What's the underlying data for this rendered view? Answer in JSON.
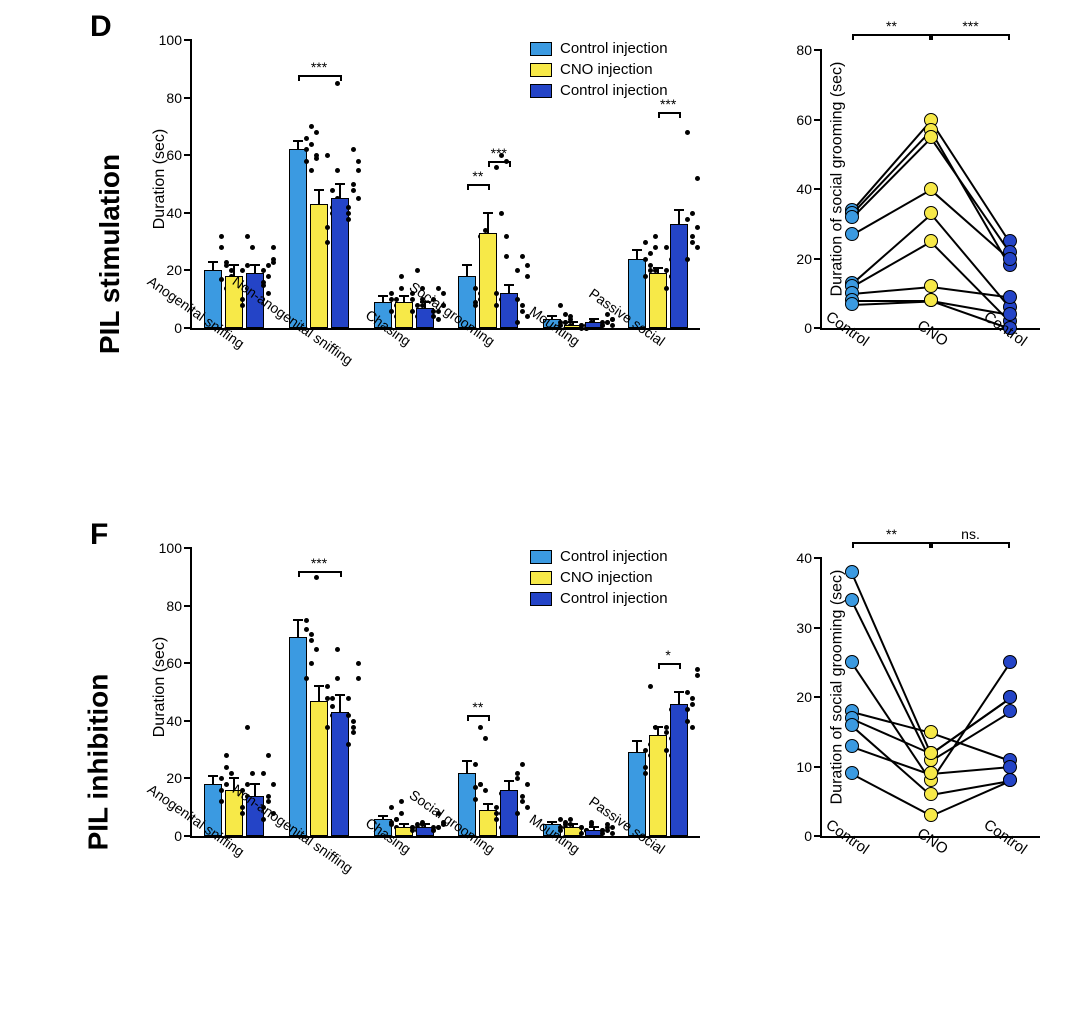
{
  "colors": {
    "control1": "#3b9ae1",
    "cno": "#f7e948",
    "control2": "#2444c7",
    "cno_marker": "#f7e948",
    "bg": "#ffffff",
    "axis": "#000000",
    "dot": "#000000"
  },
  "font": {
    "axis_label_pt": 16,
    "tick_pt": 14,
    "side_label_pt": 28,
    "panel_label_pt": 30
  },
  "panels": {
    "D": {
      "panel_label": "D",
      "side_label": "PIL stimulation",
      "bar_chart": {
        "ylabel": "Duration (sec)",
        "ylim": [
          0,
          100
        ],
        "ytick_step": 20,
        "categories": [
          "Anogenital sniffing",
          "Non-anogenital sniffing",
          "Chasing",
          "Social grooming",
          "Mounting",
          "Passive social"
        ],
        "conditions": [
          "Control injection",
          "CNO injection",
          "Control injection"
        ],
        "values": [
          {
            "means": [
              20,
              18,
              19
            ],
            "err": [
              3,
              4,
              3
            ]
          },
          {
            "means": [
              62,
              43,
              45
            ],
            "err": [
              3,
              5,
              5
            ]
          },
          {
            "means": [
              9,
              9,
              7
            ],
            "err": [
              2,
              2,
              2
            ]
          },
          {
            "means": [
              18,
              33,
              12
            ],
            "err": [
              4,
              7,
              3
            ]
          },
          {
            "means": [
              3,
              1,
              2
            ],
            "err": [
              1,
              1,
              1
            ]
          },
          {
            "means": [
              24,
              19,
              36
            ],
            "err": [
              3,
              2,
              5
            ]
          }
        ],
        "dots": [
          [
            [
              17,
              22,
              18,
              28,
              14,
              12,
              32,
              23,
              20
            ],
            [
              10,
              14,
              28,
              20,
              32,
              16,
              8,
              22,
              18
            ],
            [
              15,
              22,
              24,
              16,
              12,
              28,
              20,
              18,
              23
            ]
          ],
          [
            [
              58,
              64,
              60,
              66,
              55,
              68,
              62,
              70,
              59
            ],
            [
              30,
              48,
              55,
              60,
              40,
              85,
              35,
              42,
              45
            ],
            [
              38,
              62,
              58,
              42,
              48,
              55,
              40,
              50,
              45
            ]
          ],
          [
            [
              6,
              10,
              8,
              12,
              4,
              14,
              10,
              8,
              18
            ],
            [
              6,
              8,
              10,
              12,
              4,
              14,
              10,
              20,
              8
            ],
            [
              4,
              6,
              8,
              10,
              3,
              12,
              6,
              14,
              8
            ]
          ],
          [
            [
              8,
              12,
              28,
              14,
              10,
              34,
              9,
              32,
              12
            ],
            [
              8,
              10,
              25,
              12,
              40,
              58,
              56,
              60,
              32
            ],
            [
              2,
              6,
              22,
              10,
              25,
              18,
              20,
              8,
              4
            ]
          ],
          [
            [
              1,
              2,
              4,
              2,
              5,
              3,
              8,
              2,
              1
            ],
            [
              0,
              1,
              2,
              1,
              0,
              2,
              1,
              0,
              1
            ],
            [
              1,
              2,
              3,
              2,
              5,
              3,
              1,
              2,
              1
            ]
          ],
          [
            [
              18,
              22,
              28,
              30,
              20,
              32,
              24,
              26,
              20
            ],
            [
              14,
              18,
              22,
              20,
              24,
              16,
              28,
              18,
              20
            ],
            [
              24,
              30,
              52,
              38,
              40,
              28,
              68,
              32,
              35
            ]
          ]
        ],
        "sig_brackets": [
          {
            "cat": 1,
            "from": 0,
            "to": 2,
            "y": 88,
            "label": "***"
          },
          {
            "cat": 3,
            "from": 0,
            "to": 1,
            "y": 50,
            "label": "**"
          },
          {
            "cat": 3,
            "from": 1,
            "to": 2,
            "y": 58,
            "label": "***"
          },
          {
            "cat": 5,
            "from": 1,
            "to": 2,
            "y": 75,
            "label": "***"
          }
        ]
      },
      "line_chart": {
        "ylabel": "Duration of social grooming (sec)",
        "ylim": [
          0,
          80
        ],
        "ytick_step": 20,
        "x_categories": [
          "Control",
          "CNO",
          "Control"
        ],
        "series": [
          [
            34,
            60,
            25
          ],
          [
            33,
            57,
            18
          ],
          [
            32,
            55,
            22
          ],
          [
            27,
            40,
            20
          ],
          [
            13,
            33,
            6
          ],
          [
            12,
            25,
            2
          ],
          [
            10,
            12,
            9
          ],
          [
            8,
            8,
            0
          ],
          [
            7,
            8,
            4
          ]
        ],
        "sig_brackets": [
          {
            "from": 0,
            "to": 1,
            "y": 70,
            "label": "**"
          },
          {
            "from": 1,
            "to": 2,
            "y": 70,
            "label": "***"
          }
        ]
      }
    },
    "F": {
      "panel_label": "F",
      "side_label": "PIL inhibition",
      "bar_chart": {
        "ylabel": "Duration (sec)",
        "ylim": [
          0,
          100
        ],
        "ytick_step": 20,
        "categories": [
          "Anogenital sniffing",
          "Non-anogenital sniffing",
          "Chasing",
          "Social grooming",
          "Mounting",
          "Passive social"
        ],
        "conditions": [
          "Control injection",
          "CNO injection",
          "Control injection"
        ],
        "values": [
          {
            "means": [
              18,
              16,
              14
            ],
            "err": [
              3,
              4,
              4
            ]
          },
          {
            "means": [
              69,
              47,
              43
            ],
            "err": [
              6,
              5,
              6
            ]
          },
          {
            "means": [
              6,
              3,
              3
            ],
            "err": [
              1,
              1,
              1
            ]
          },
          {
            "means": [
              22,
              9,
              16
            ],
            "err": [
              4,
              2,
              3
            ]
          },
          {
            "means": [
              4,
              3,
              2
            ],
            "err": [
              1,
              1,
              1
            ]
          },
          {
            "means": [
              29,
              35,
              46
            ],
            "err": [
              4,
              3,
              4
            ]
          }
        ],
        "dots": [
          [
            [
              12,
              18,
              22,
              16,
              28,
              14,
              20,
              24
            ],
            [
              8,
              14,
              22,
              16,
              38,
              12,
              10,
              18
            ],
            [
              6,
              12,
              18,
              10,
              28,
              8,
              22,
              14
            ]
          ],
          [
            [
              55,
              68,
              90,
              72,
              60,
              65,
              75,
              70
            ],
            [
              38,
              48,
              65,
              52,
              42,
              55,
              48,
              45
            ],
            [
              32,
              40,
              60,
              48,
              36,
              55,
              42,
              38
            ]
          ],
          [
            [
              4,
              6,
              8,
              10,
              3,
              12,
              5,
              6
            ],
            [
              2,
              3,
              4,
              3,
              2,
              5,
              3,
              4
            ],
            [
              2,
              3,
              4,
              3,
              8,
              5,
              2,
              3
            ]
          ],
          [
            [
              13,
              18,
              34,
              25,
              38,
              16,
              17,
              18
            ],
            [
              6,
              8,
              12,
              10,
              15,
              11,
              8,
              3
            ],
            [
              8,
              12,
              18,
              20,
              25,
              10,
              22,
              14
            ]
          ],
          [
            [
              2,
              4,
              6,
              3,
              5,
              4,
              6,
              3
            ],
            [
              1,
              2,
              4,
              3,
              2,
              5,
              3,
              2
            ],
            [
              1,
              2,
              3,
              2,
              4,
              1,
              2,
              3
            ]
          ],
          [
            [
              22,
              28,
              38,
              30,
              52,
              26,
              24,
              32
            ],
            [
              30,
              34,
              40,
              38,
              44,
              32,
              36,
              28
            ],
            [
              40,
              46,
              58,
              50,
              38,
              56,
              44,
              48
            ]
          ]
        ],
        "sig_brackets": [
          {
            "cat": 1,
            "from": 0,
            "to": 2,
            "y": 92,
            "label": "***"
          },
          {
            "cat": 3,
            "from": 0,
            "to": 1,
            "y": 42,
            "label": "**"
          },
          {
            "cat": 5,
            "from": 1,
            "to": 2,
            "y": 60,
            "label": "*"
          }
        ]
      },
      "line_chart": {
        "ylabel": "Duration of social grooming (sec)",
        "ylim": [
          0,
          40
        ],
        "ytick_step": 10,
        "x_categories": [
          "Control",
          "CNO",
          "Control"
        ],
        "series": [
          [
            38,
            12,
            20
          ],
          [
            34,
            11,
            18
          ],
          [
            25,
            8,
            25
          ],
          [
            18,
            15,
            11
          ],
          [
            17,
            12,
            20
          ],
          [
            16,
            6,
            8
          ],
          [
            13,
            9,
            10
          ],
          [
            9,
            3,
            8
          ]
        ],
        "sig_brackets": [
          {
            "from": 0,
            "to": 1,
            "y": 42,
            "label": "**"
          },
          {
            "from": 1,
            "to": 2,
            "y": 42,
            "label": "ns."
          }
        ]
      }
    }
  },
  "legend": {
    "items": [
      {
        "label": "Control injection",
        "color": "#3b9ae1"
      },
      {
        "label": "CNO injection",
        "color": "#f7e948"
      },
      {
        "label": "Control injection",
        "color": "#2444c7"
      }
    ]
  }
}
